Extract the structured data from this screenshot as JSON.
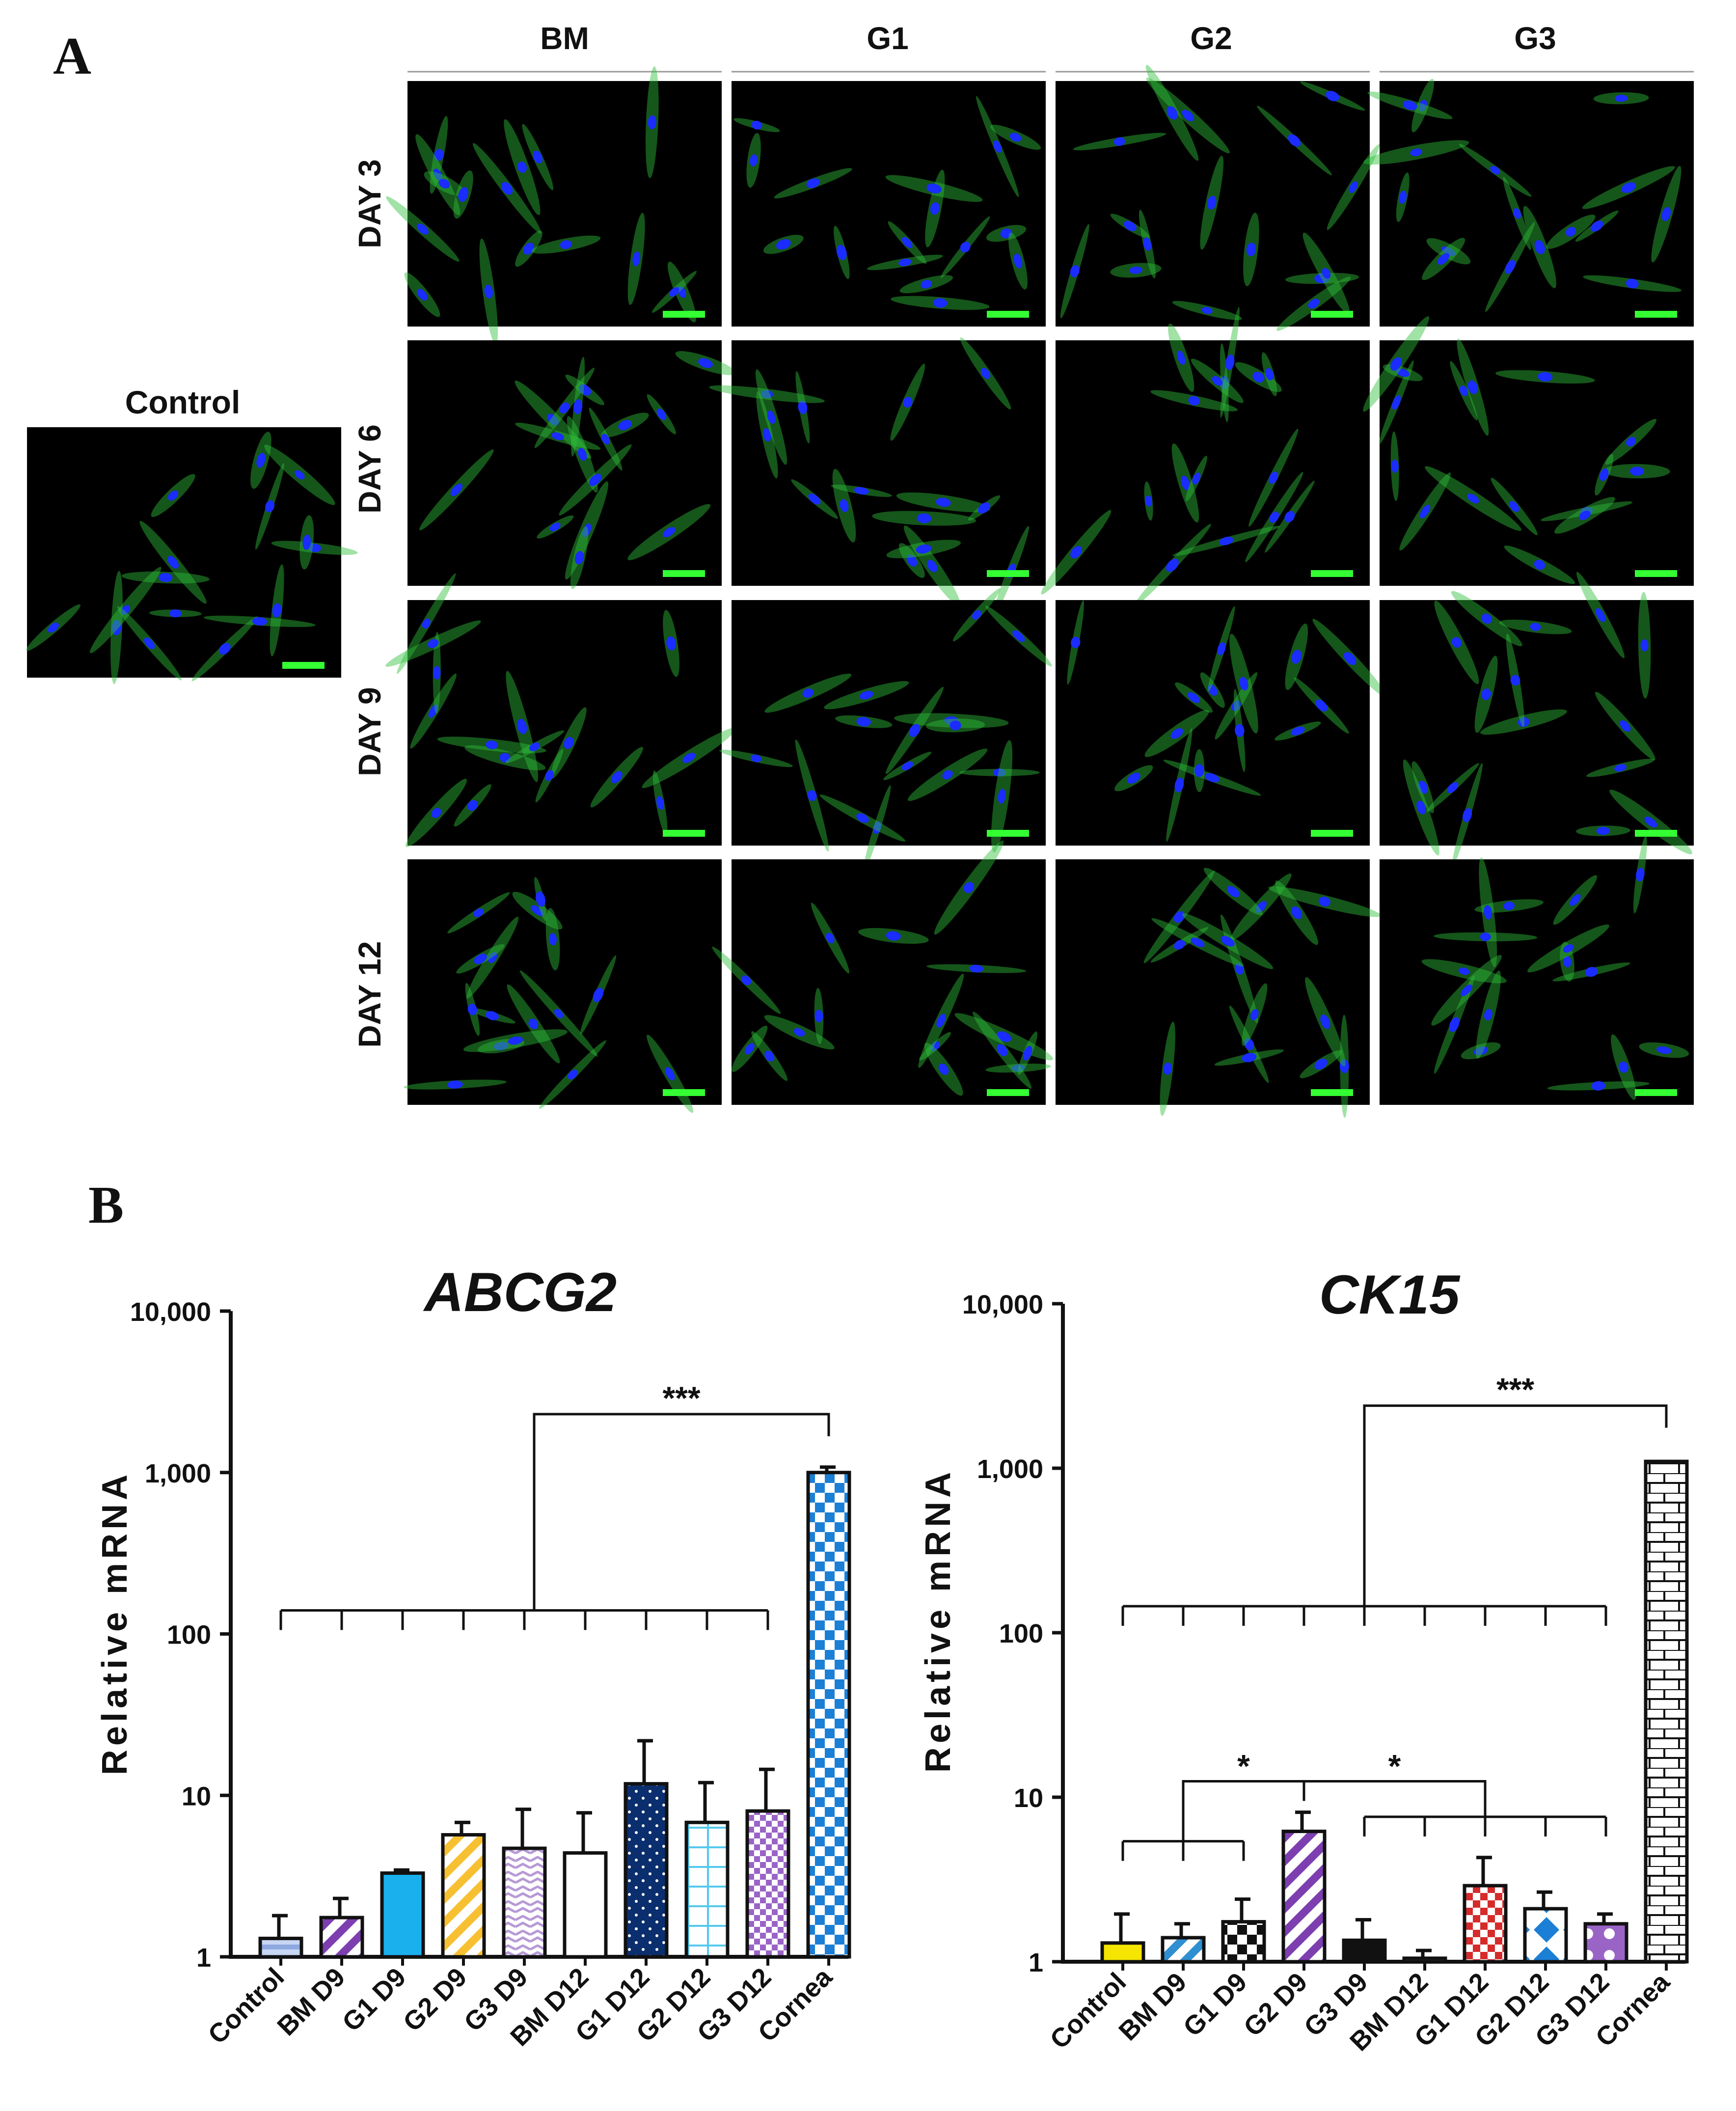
{
  "panel_a": {
    "letter": "A",
    "columns": [
      "BM",
      "G1",
      "G2",
      "G3"
    ],
    "rows": [
      "DAY 3",
      "DAY 6",
      "DAY 9",
      "DAY 12"
    ],
    "control_label": "Control"
  },
  "panel_b": {
    "letter": "B"
  },
  "colors": {
    "nucleus": "#1a2cff",
    "cytoskeleton": "#2fbf3a",
    "background": "#000000",
    "scale_bar": "#33ff33"
  },
  "chart_data": [
    {
      "type": "bar",
      "title": "ABCG2",
      "xlabel": "",
      "ylabel": "Relative mRNA",
      "yscale": "log",
      "ylim": [
        1,
        10000
      ],
      "ytick_labels": [
        "1",
        "10",
        "100",
        "1,000",
        "10,000"
      ],
      "categories": [
        "Control",
        "BM D9",
        "G1 D9",
        "G2 D9",
        "G3 D9",
        "BM D12",
        "G1 D12",
        "G2 D12",
        "G3 D12",
        "Cornea"
      ],
      "values": [
        1.3,
        1.75,
        3.3,
        5.7,
        4.7,
        4.4,
        11.8,
        6.8,
        8.0,
        1000
      ],
      "errors": [
        0.5,
        0.55,
        0.15,
        1.1,
        3.5,
        3.4,
        10.0,
        5.2,
        6.5,
        80
      ],
      "bar_colors": [
        "#a9c1ea",
        "#7d3fb0",
        "#1ab0ee",
        "#f7c033",
        "#b79ad6",
        "#ffffff",
        "#0b2e6e",
        "#55c9ee",
        "#9a64c6",
        "#1c7fd6"
      ],
      "annotations": [
        {
          "text": "***",
          "from": "Control..G3 D12",
          "to": "Cornea"
        }
      ]
    },
    {
      "type": "bar",
      "title": "CK15",
      "xlabel": "",
      "ylabel": "Relative mRNA",
      "yscale": "log",
      "ylim": [
        1,
        10000
      ],
      "ytick_labels": [
        "1",
        "10",
        "100",
        "1,000",
        "10,000"
      ],
      "categories": [
        "Control",
        "BM D9",
        "G1 D9",
        "G2 D9",
        "G3 D9",
        "BM D12",
        "G1 D12",
        "G2 D12",
        "G3 D12",
        "Cornea"
      ],
      "values": [
        1.3,
        1.4,
        1.75,
        6.2,
        1.35,
        1.05,
        2.9,
        2.1,
        1.7,
        1100
      ],
      "errors": [
        0.65,
        0.3,
        0.65,
        1.9,
        0.45,
        0.12,
        1.4,
        0.55,
        0.25,
        0
      ],
      "bar_colors": [
        "#f5e500",
        "#2f8fd0",
        "#222222",
        "#7d3fb0",
        "#111111",
        "#ffffff",
        "#d62b2b",
        "#1c7fd6",
        "#9a64c6",
        "#ffffff"
      ],
      "annotations": [
        {
          "text": "*",
          "from": "Control, BM D9, G1 D9",
          "to": "G2 D9"
        },
        {
          "text": "*",
          "from": "G2 D9",
          "to": "G3 D9..G3 D12"
        },
        {
          "text": "***",
          "from": "Control..G3 D12",
          "to": "Cornea"
        }
      ]
    }
  ]
}
